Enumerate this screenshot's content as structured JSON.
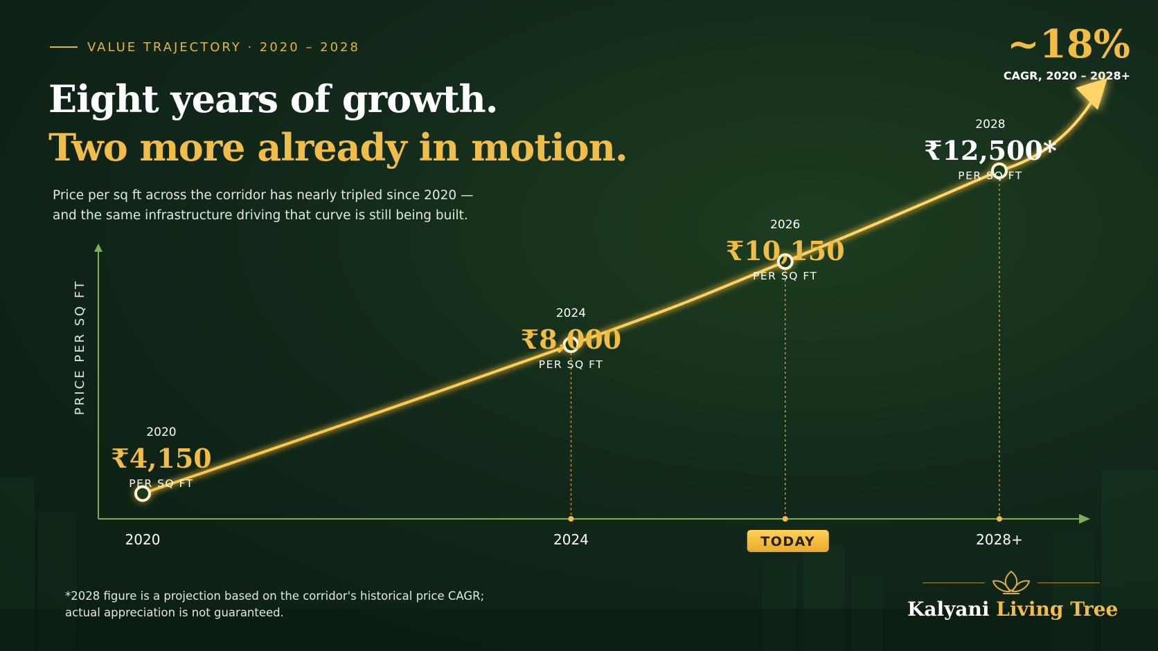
{
  "eyebrow": "VALUE TRAJECTORY  ·  2020 – 2028",
  "headline": {
    "line1": "Eight years of growth.",
    "line2": "Two more already in motion."
  },
  "subtitle": {
    "line1": "Price per sq ft across the corridor has nearly tripled since 2020 —",
    "line2": "and the same infrastructure driving that curve is still being built."
  },
  "cagr": {
    "value": "~18%",
    "label": "CAGR, 2020 – 2028+"
  },
  "footnote": {
    "line1": "*2028 figure is a projection based on the corridor's historical price CAGR;",
    "line2": "actual appreciation is not guaranteed."
  },
  "brand": {
    "part1": "Kalyani",
    "part2": "Living Tree",
    "icon": "lotus-leaf-icon"
  },
  "colors": {
    "accent": "#f2bd45",
    "background": "#12291a",
    "axis": "#7fae5a"
  },
  "chart_data": {
    "type": "line",
    "ylabel": "PRICE PER SQ FT",
    "xlabel": "",
    "x": [
      2020,
      2024,
      2026,
      2028
    ],
    "x_tick_labels": [
      "2020",
      "2024",
      "TODAY",
      "2028+"
    ],
    "highlighted_tick": "TODAY",
    "series": [
      {
        "values": [
          4150,
          8000,
          10150,
          12500
        ],
        "point_years": [
          "2020",
          "2024",
          "2026",
          "2028"
        ],
        "point_labels": [
          "₹4,150",
          "₹8,000",
          "₹10,150",
          "₹12,500*"
        ],
        "point_units": [
          "PER SQ FT",
          "PER SQ FT",
          "PER SQ FT",
          "PER SQ FT"
        ]
      }
    ],
    "projected_from": 2026,
    "ylim": [
      3800,
      14000
    ],
    "xlim": [
      2020,
      2028
    ],
    "grid": false,
    "legend": "none"
  }
}
